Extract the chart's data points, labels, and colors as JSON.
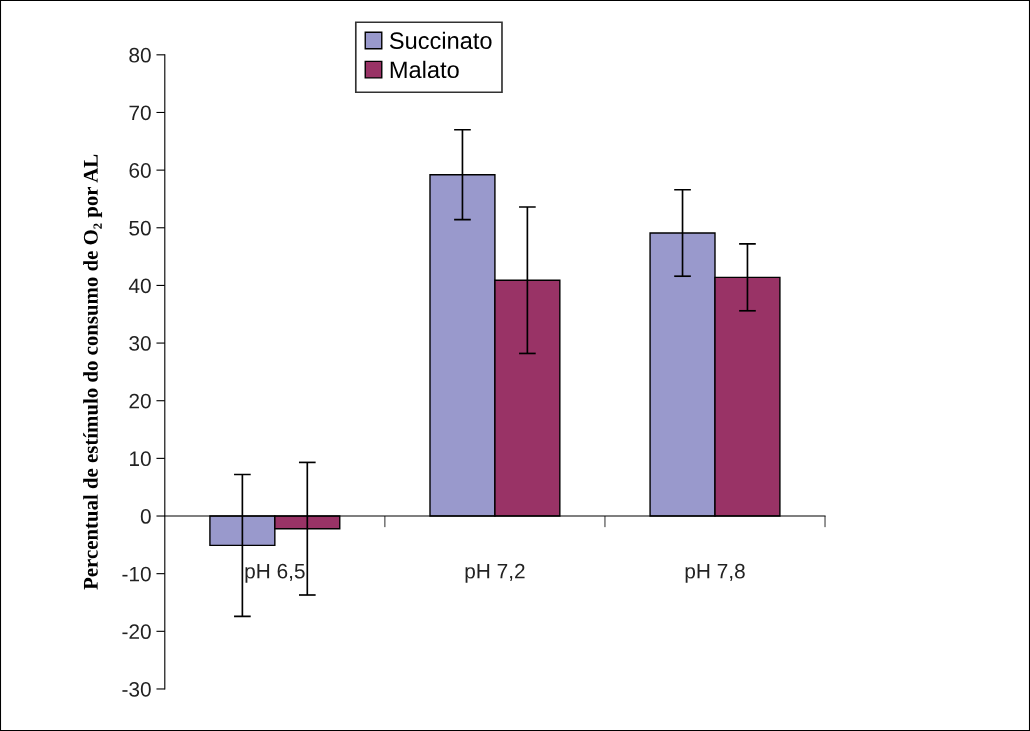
{
  "chart_data": {
    "type": "bar",
    "ylabel": "Percentual de estímulo do consumo de O₂ por AL",
    "categories": [
      "pH 6,5",
      "pH 7,2",
      "pH 7,8"
    ],
    "series": [
      {
        "name": "Succinato",
        "color": "#9999cc",
        "values": [
          -5.1,
          59.2,
          49.1
        ],
        "errors": [
          12.3,
          7.8,
          7.5
        ]
      },
      {
        "name": "Malato",
        "color": "#993366",
        "values": [
          -2.2,
          40.9,
          41.4
        ],
        "errors": [
          11.5,
          12.7,
          5.8
        ]
      }
    ],
    "ylim": [
      -30,
      80
    ],
    "yticks": [
      -30,
      -20,
      -10,
      0,
      10,
      20,
      30,
      40,
      50,
      60,
      70,
      80
    ],
    "grid": false,
    "legend": "top"
  }
}
